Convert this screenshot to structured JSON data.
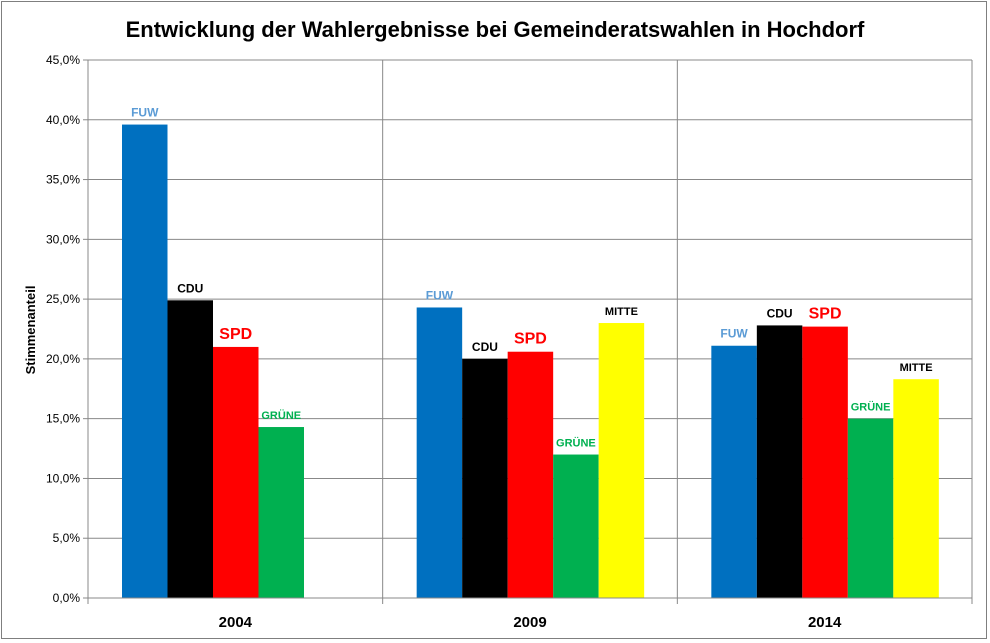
{
  "chart_data": {
    "type": "bar",
    "title": "Entwicklung der Wahlergebnisse bei Gemeinderatswahlen in Hochdorf",
    "ylabel": "Stimmenanteil",
    "xlabel": "",
    "categories": [
      "2004",
      "2009",
      "2014"
    ],
    "ylim": [
      0,
      45
    ],
    "yticks": [
      "0,0%",
      "5,0%",
      "10,0%",
      "15,0%",
      "20,0%",
      "25,0%",
      "30,0%",
      "35,0%",
      "40,0%",
      "45,0%"
    ],
    "grid": true,
    "legend": "none",
    "groups": [
      {
        "category": "2004",
        "bars": [
          {
            "label": "FUW",
            "value": 39.6,
            "color": "#0070C0",
            "label_color": "#5B9BD5"
          },
          {
            "label": "CDU",
            "value": 24.9,
            "color": "#000000",
            "label_color": "#000000"
          },
          {
            "label": "SPD",
            "value": 21.0,
            "color": "#FF0000",
            "label_color": "#FF0000"
          },
          {
            "label": "GRÜNE",
            "value": 14.3,
            "color": "#00B050",
            "label_color": "#00B050"
          }
        ]
      },
      {
        "category": "2009",
        "bars": [
          {
            "label": "FUW",
            "value": 24.3,
            "color": "#0070C0",
            "label_color": "#5B9BD5"
          },
          {
            "label": "CDU",
            "value": 20.0,
            "color": "#000000",
            "label_color": "#000000"
          },
          {
            "label": "SPD",
            "value": 20.6,
            "color": "#FF0000",
            "label_color": "#FF0000"
          },
          {
            "label": "GRÜNE",
            "value": 12.0,
            "color": "#00B050",
            "label_color": "#00B050"
          },
          {
            "label": "MITTE",
            "value": 23.0,
            "color": "#FFFF00",
            "label_color": "#000000"
          }
        ]
      },
      {
        "category": "2014",
        "bars": [
          {
            "label": "FUW",
            "value": 21.1,
            "color": "#0070C0",
            "label_color": "#5B9BD5"
          },
          {
            "label": "CDU",
            "value": 22.8,
            "color": "#000000",
            "label_color": "#000000"
          },
          {
            "label": "SPD",
            "value": 22.7,
            "color": "#FF0000",
            "label_color": "#FF0000"
          },
          {
            "label": "GRÜNE",
            "value": 15.0,
            "color": "#00B050",
            "label_color": "#00B050"
          },
          {
            "label": "MITTE",
            "value": 18.3,
            "color": "#FFFF00",
            "label_color": "#000000"
          }
        ]
      }
    ]
  }
}
